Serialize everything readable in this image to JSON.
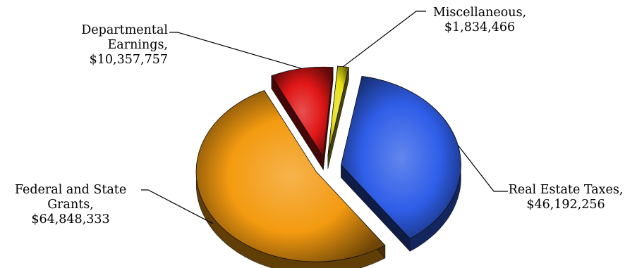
{
  "chart_data": {
    "type": "pie",
    "title": "",
    "slices": [
      {
        "name": "Real Estate Taxes",
        "value": 46192256,
        "value_text": "$46,192,256",
        "label": [
          "Real Estate Taxes,",
          "$46,192,256"
        ],
        "color": "#2f5ee8"
      },
      {
        "name": "Federal and State Grants",
        "value": 64848333,
        "value_text": "$64,848,333",
        "label": [
          "Federal and State",
          "Grants,",
          "$64,848,333"
        ],
        "color": "#f39a10"
      },
      {
        "name": "Departmental Earnings",
        "value": 10357757,
        "value_text": "$10,357,757",
        "label": [
          "Departmental",
          "Earnings,",
          "$10,357,757"
        ],
        "color": "#e01616"
      },
      {
        "name": "Miscellaneous",
        "value": 1834466,
        "value_text": "$1,834,466",
        "label": [
          "Miscellaneous,",
          "$1,834,466"
        ],
        "color": "#e8e010"
      }
    ],
    "style": "3d-exploded",
    "legend": "none"
  }
}
